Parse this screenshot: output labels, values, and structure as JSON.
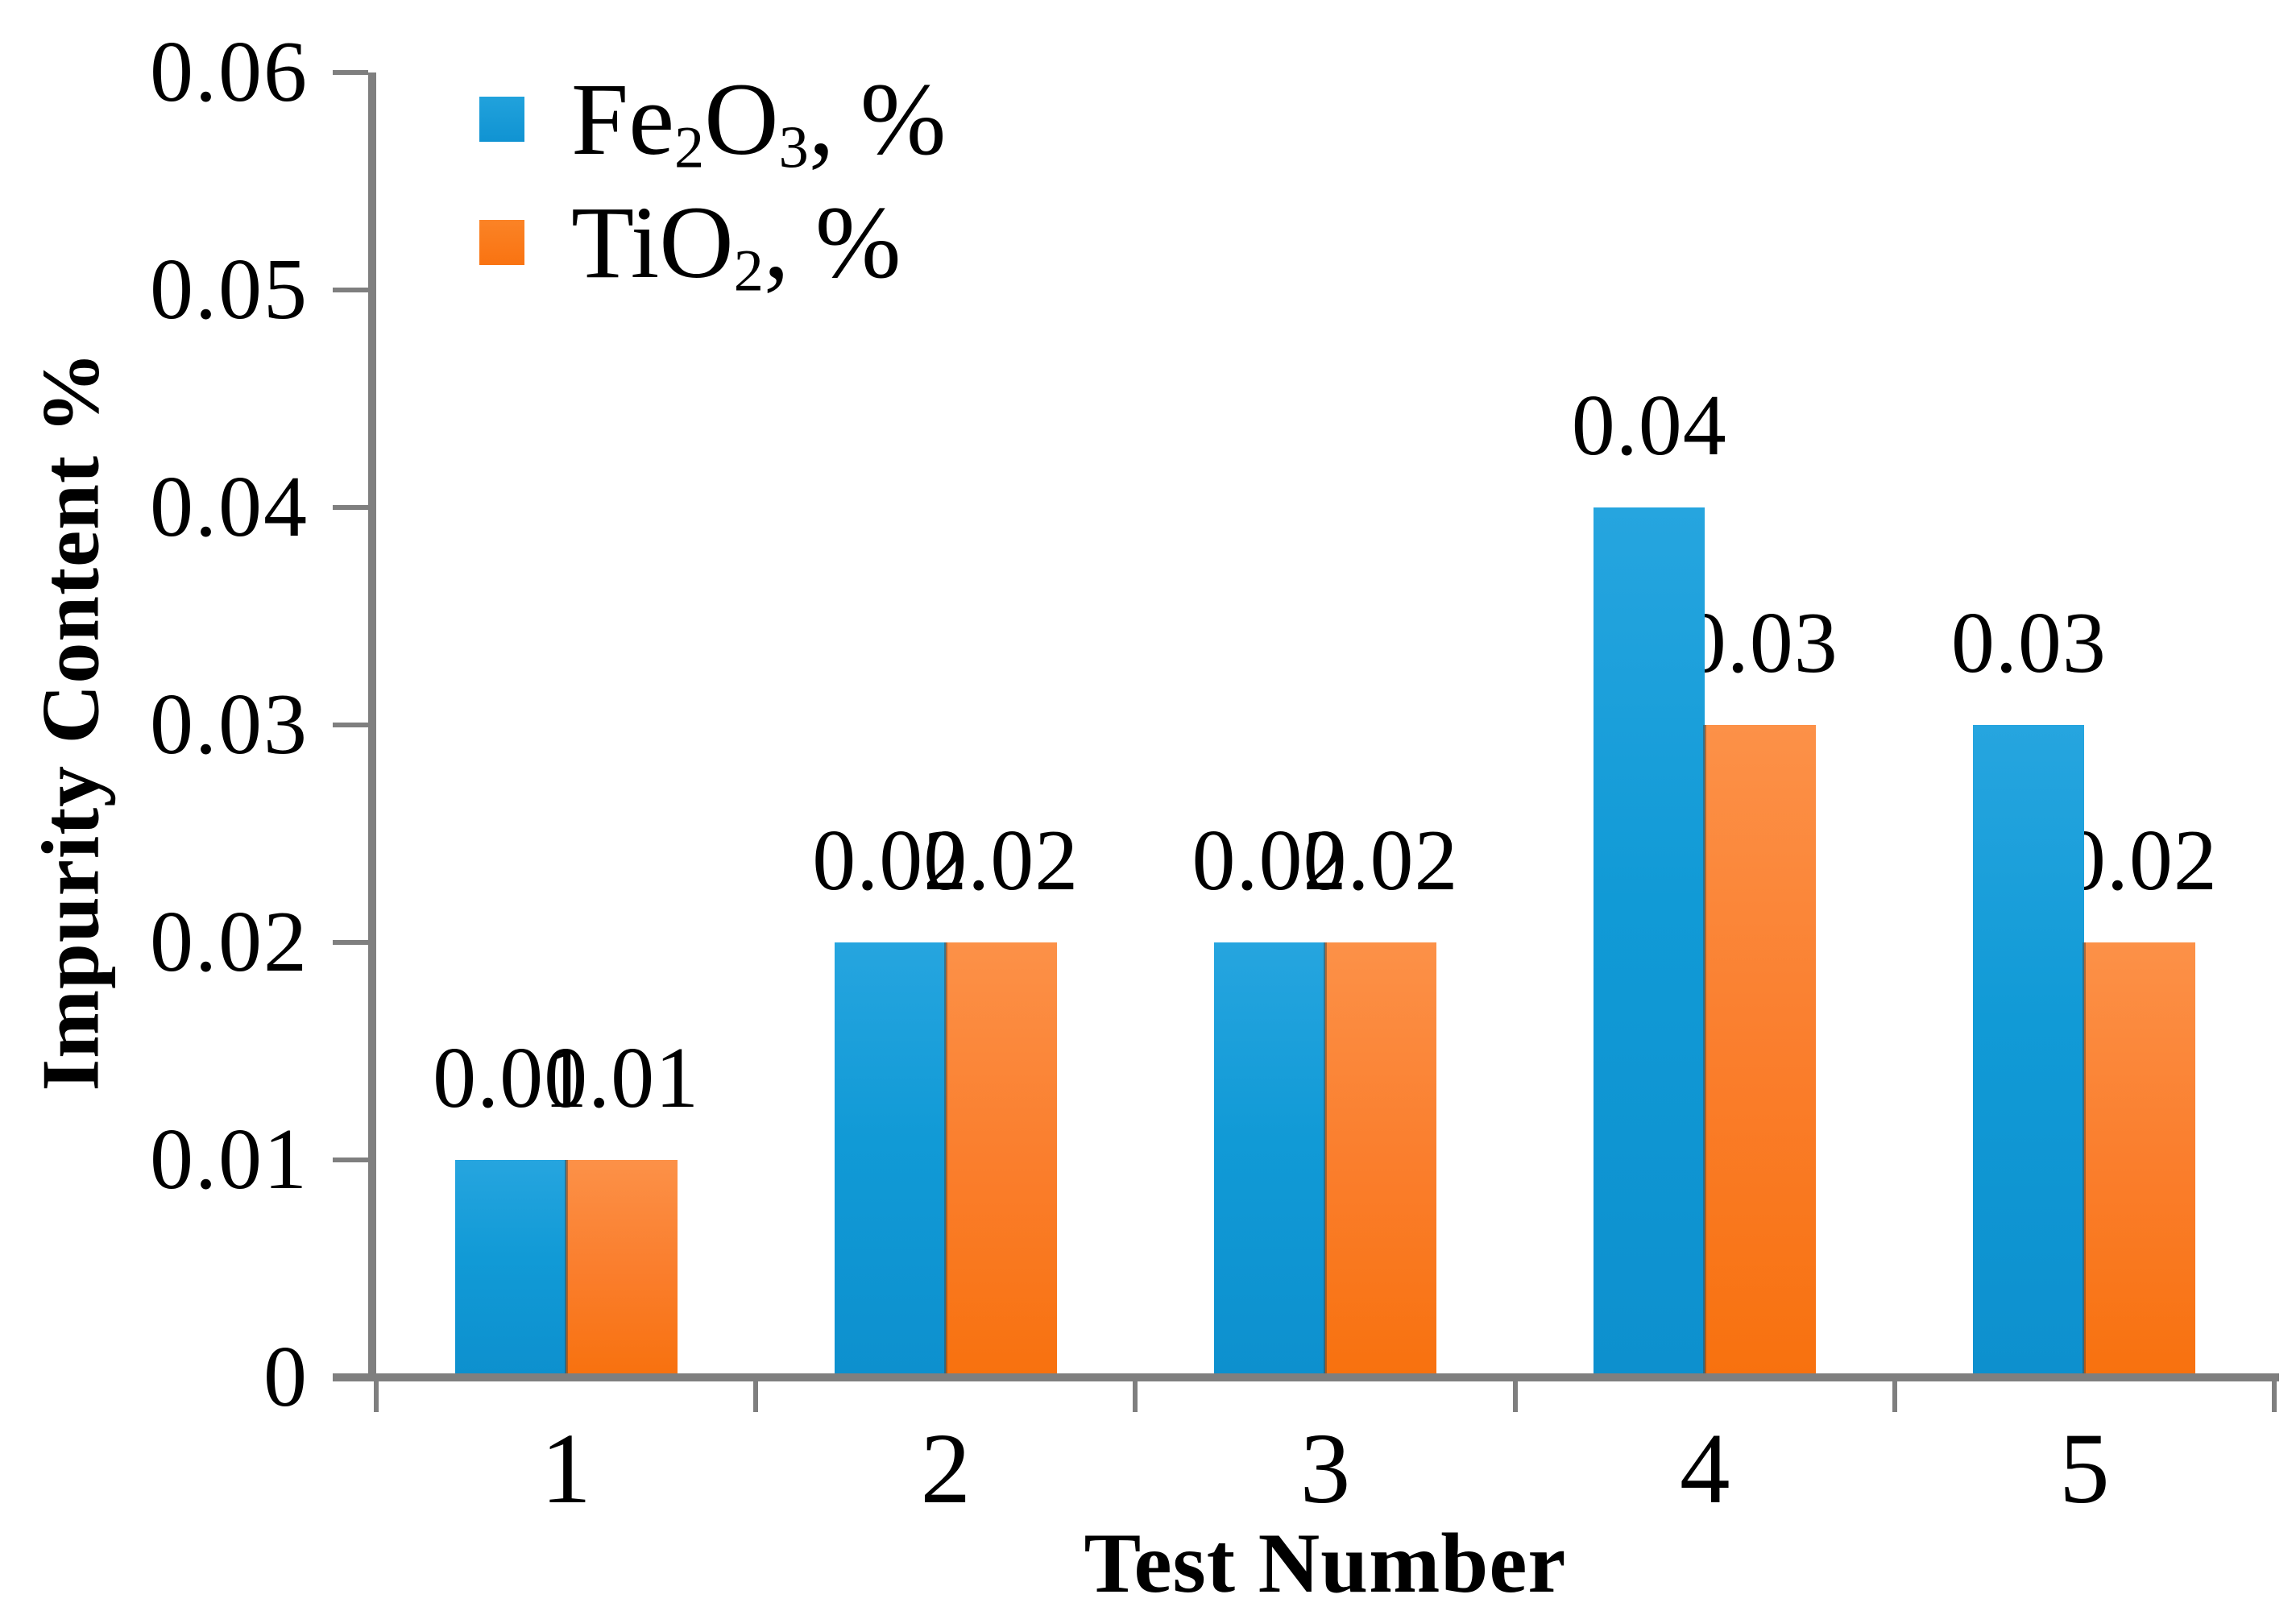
{
  "chart_data": {
    "type": "bar",
    "title": "",
    "categories": [
      "1",
      "2",
      "3",
      "4",
      "5"
    ],
    "series": [
      {
        "id": "fe2o3",
        "name": "Fe2O3, %",
        "label_parts": [
          {
            "t": "Fe"
          },
          {
            "t": "2",
            "sub": true
          },
          {
            "t": "O"
          },
          {
            "t": "3",
            "sub": true
          },
          {
            "t": ", %"
          }
        ],
        "color": "#119AD6",
        "values": [
          0.01,
          0.02,
          0.02,
          0.04,
          0.03
        ],
        "data_labels": [
          "0.01",
          "0.02",
          "0.02",
          "0.04",
          "0.03"
        ]
      },
      {
        "id": "tio2",
        "name": "TiO2, %",
        "label_parts": [
          {
            "t": "TiO"
          },
          {
            "t": "2",
            "sub": true
          },
          {
            "t": ", %"
          }
        ],
        "color": "#FA7E2D",
        "values": [
          0.01,
          0.02,
          0.02,
          0.03,
          0.02
        ],
        "data_labels": [
          "0.01",
          "0.02",
          "0.02",
          "0.03",
          "0.02"
        ]
      }
    ],
    "xlabel": "Test Number",
    "ylabel": "Impurity Content %",
    "ylim": [
      0,
      0.06
    ],
    "yticks": [
      "0",
      "0.01",
      "0.02",
      "0.03",
      "0.04",
      "0.05",
      "0.06"
    ],
    "grid": false,
    "legend_position": "top-left-inside"
  },
  "colors": {
    "axis": "#7F7F7F",
    "text": "#000000",
    "background": "#FFFFFF"
  }
}
